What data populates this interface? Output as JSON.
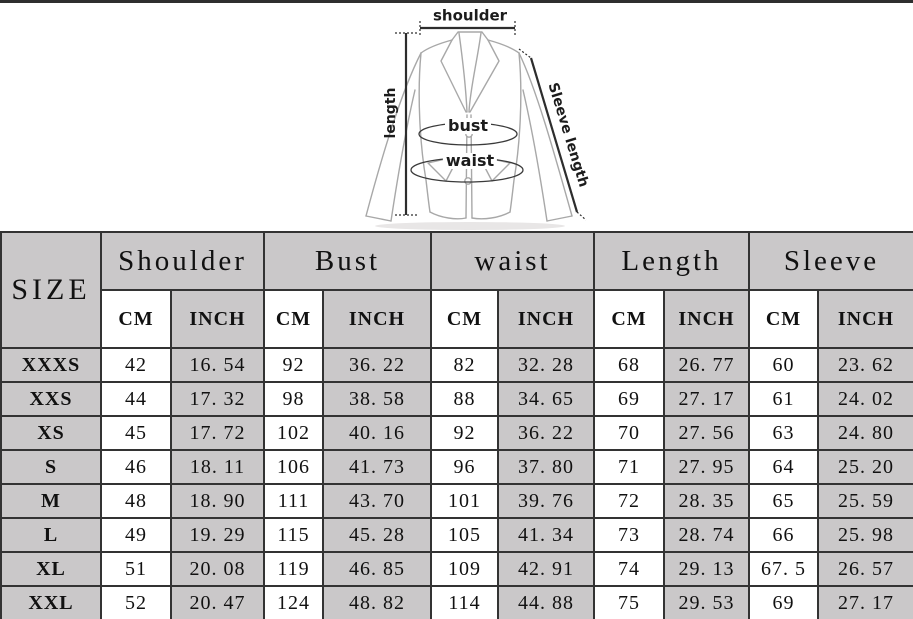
{
  "diagram": {
    "labels": {
      "shoulder": "shoulder",
      "length": "length",
      "bust": "bust",
      "waist": "waist",
      "sleeve_length": "Sleeve length"
    }
  },
  "table": {
    "size_header": "SIZE",
    "groups": [
      {
        "label": "Shoulder"
      },
      {
        "label": "Bust"
      },
      {
        "label": "waist"
      },
      {
        "label": "Length"
      },
      {
        "label": "Sleeve"
      }
    ],
    "units": {
      "cm": "CM",
      "inch": "INCH"
    },
    "rows": [
      {
        "size": "XXXS",
        "values": [
          "42",
          "16. 54",
          "92",
          "36. 22",
          "82",
          "32. 28",
          "68",
          "26. 77",
          "60",
          "23. 62"
        ]
      },
      {
        "size": "XXS",
        "values": [
          "44",
          "17. 32",
          "98",
          "38. 58",
          "88",
          "34. 65",
          "69",
          "27. 17",
          "61",
          "24. 02"
        ]
      },
      {
        "size": "XS",
        "values": [
          "45",
          "17. 72",
          "102",
          "40. 16",
          "92",
          "36. 22",
          "70",
          "27. 56",
          "63",
          "24. 80"
        ]
      },
      {
        "size": "S",
        "values": [
          "46",
          "18. 11",
          "106",
          "41. 73",
          "96",
          "37. 80",
          "71",
          "27. 95",
          "64",
          "25. 20"
        ]
      },
      {
        "size": "M",
        "values": [
          "48",
          "18. 90",
          "111",
          "43. 70",
          "101",
          "39. 76",
          "72",
          "28. 35",
          "65",
          "25. 59"
        ]
      },
      {
        "size": "L",
        "values": [
          "49",
          "19. 29",
          "115",
          "45. 28",
          "105",
          "41. 34",
          "73",
          "28. 74",
          "66",
          "25. 98"
        ]
      },
      {
        "size": "XL",
        "values": [
          "51",
          "20. 08",
          "119",
          "46. 85",
          "109",
          "42. 91",
          "74",
          "29. 13",
          "67. 5",
          "26. 57"
        ]
      },
      {
        "size": "XXL",
        "values": [
          "52",
          "20. 47",
          "124",
          "48. 82",
          "114",
          "44. 88",
          "75",
          "29. 53",
          "69",
          "27. 17"
        ]
      }
    ]
  },
  "colors": {
    "cell_gray": "#cac8c9",
    "cell_white": "#ffffff",
    "border": "#333333",
    "top_line": "#2e2e2e",
    "garment_outline": "#a8a8a8",
    "measure_line": "#2d2d2d"
  }
}
